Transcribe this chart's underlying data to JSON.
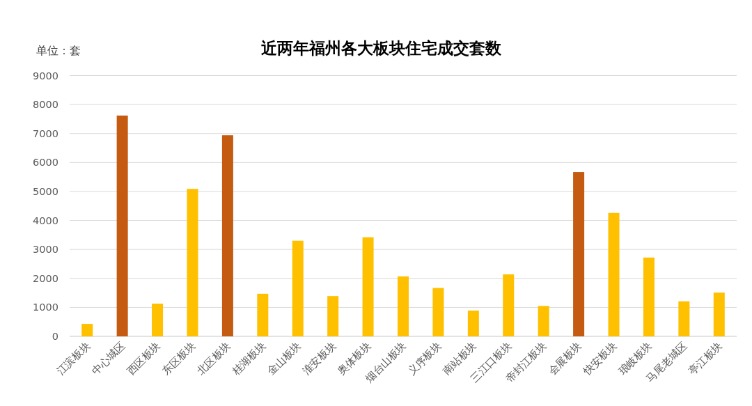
{
  "chart_data": {
    "type": "bar",
    "title": "近两年福州各大板块住宅成交套数",
    "ylabel": "单位：套",
    "categories": [
      "江滨板块",
      "中心城区",
      "西区板块",
      "东区板块",
      "北区板块",
      "桂湖板块",
      "金山板块",
      "淮安板块",
      "奥体板块",
      "烟台山板块",
      "义序板块",
      "南站板块",
      "三江口板块",
      "帝封江板块",
      "会展板块",
      "快安板块",
      "琅岐板块",
      "马尾老城区",
      "亭江板块"
    ],
    "values": [
      430,
      7620,
      1130,
      5090,
      6940,
      1470,
      3300,
      1390,
      3420,
      2070,
      1670,
      890,
      2140,
      1050,
      5670,
      4260,
      2720,
      1210,
      1510
    ],
    "colors": [
      "#ffc000",
      "#c55a11",
      "#ffc000",
      "#ffc000",
      "#c55a11",
      "#ffc000",
      "#ffc000",
      "#ffc000",
      "#ffc000",
      "#ffc000",
      "#ffc000",
      "#ffc000",
      "#ffc000",
      "#ffc000",
      "#c55a11",
      "#ffc000",
      "#ffc000",
      "#ffc000",
      "#ffc000"
    ],
    "ylim": [
      0,
      9000
    ],
    "yticks": [
      0,
      1000,
      2000,
      3000,
      4000,
      5000,
      6000,
      7000,
      8000,
      9000
    ],
    "grid": "y"
  }
}
